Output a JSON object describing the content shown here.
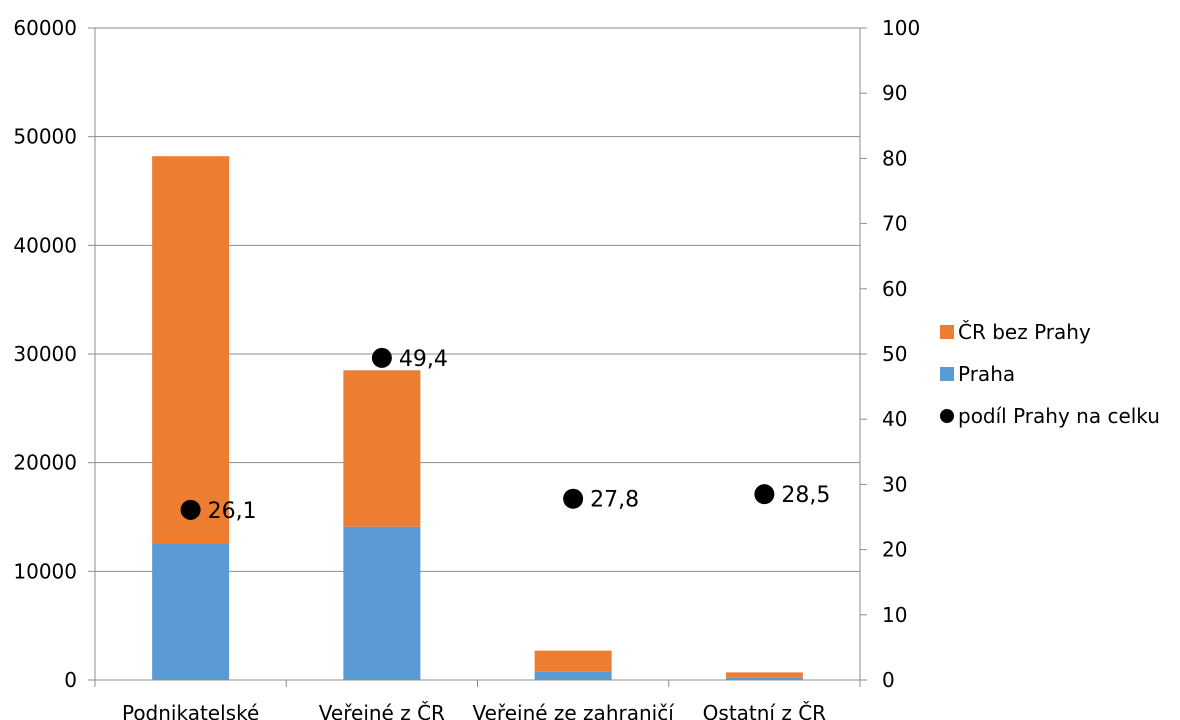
{
  "chart_data": {
    "type": "bar",
    "stacked": true,
    "categories": [
      "Podnikatelské",
      "Veřejné z ČR",
      "Veřejné ze zahraničí",
      "Ostatní z ČR"
    ],
    "series": [
      {
        "name": "Praha",
        "kind": "bar",
        "axis": "left",
        "color": "#5b9bd5",
        "values": [
          12600,
          14100,
          750,
          200
        ]
      },
      {
        "name": "ČR bez Prahy",
        "kind": "bar",
        "axis": "left",
        "color": "#ed7d31",
        "values": [
          35600,
          14400,
          1950,
          500
        ]
      },
      {
        "name": "podíl Prahy na celku",
        "kind": "scatter",
        "axis": "right",
        "color": "#000000",
        "values": [
          26.1,
          49.4,
          27.8,
          28.5
        ],
        "labels": [
          "26,1",
          "49,4",
          "27,8",
          "28,5"
        ]
      }
    ],
    "y_left": {
      "min": 0,
      "max": 60000,
      "ticks": [
        "0",
        "10000",
        "20000",
        "30000",
        "40000",
        "50000",
        "60000"
      ]
    },
    "y_right": {
      "min": 0,
      "max": 100,
      "ticks": [
        "0",
        "10",
        "20",
        "30",
        "40",
        "50",
        "60",
        "70",
        "80",
        "90",
        "100"
      ]
    },
    "legend": {
      "position": "right",
      "entries": [
        "ČR bez Prahy",
        "Praha",
        "podíl Prahy na celku"
      ]
    },
    "grid": true,
    "title": "",
    "xlabel": "",
    "ylabel": ""
  }
}
